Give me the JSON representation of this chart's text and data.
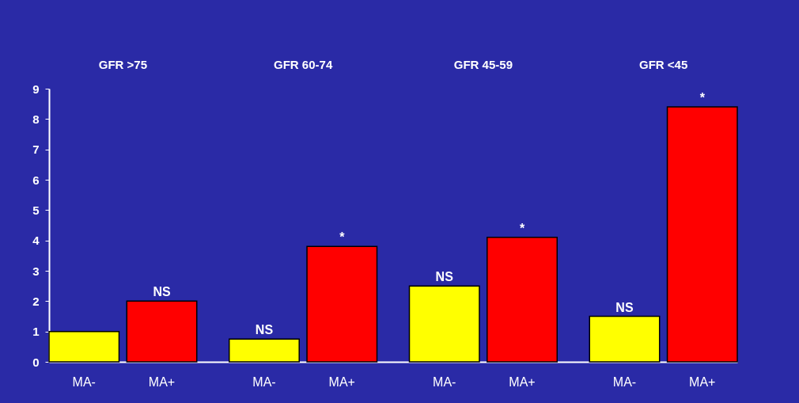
{
  "chart_data": {
    "type": "bar",
    "categories": [
      "GFR >75",
      "GFR 60-74",
      "GFR 45-59",
      "GFR <45"
    ],
    "series": [
      {
        "name": "MA-",
        "color": "#ffff00",
        "values": [
          1.0,
          0.75,
          2.5,
          1.5
        ]
      },
      {
        "name": "MA+",
        "color": "#ff0000",
        "values": [
          2.0,
          3.8,
          4.1,
          8.4
        ]
      }
    ],
    "ylim": [
      0,
      9
    ],
    "yticks": [
      0,
      1,
      2,
      3,
      4,
      5,
      6,
      7,
      8,
      9
    ],
    "grid": false,
    "annotations": [
      {
        "text": "NS",
        "x": "GFR >75",
        "y": 2.0
      },
      {
        "text": "NS",
        "x": "GFR 60-74",
        "y": 0.75
      },
      {
        "text": "*",
        "x": "GFR 60-74",
        "y": 3.8
      },
      {
        "text": "NS",
        "x": "GFR 45-59",
        "y": 2.5
      },
      {
        "text": "*",
        "x": "GFR 45-59",
        "y": 4.1
      },
      {
        "text": "NS",
        "x": "GFR <45",
        "y": 1.5
      },
      {
        "text": "*",
        "x": "GFR <45",
        "y": 8.4
      }
    ]
  }
}
